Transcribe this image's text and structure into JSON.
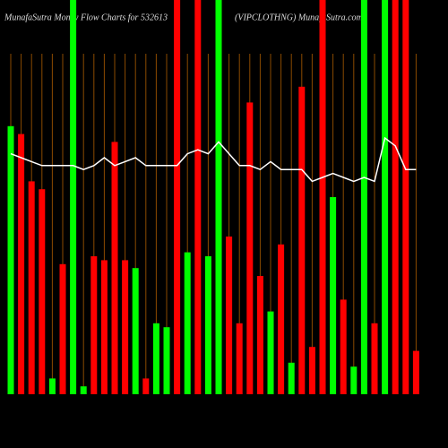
{
  "chart_data": {
    "type": "bar",
    "title": "MunafaSutra  Money Flow  Charts for 532613",
    "subtitle": "(VIPCLOTHNG) MunafaSutra.com",
    "ylim": [
      0,
      100
    ],
    "values": [
      68,
      66,
      54,
      52,
      4,
      33,
      100,
      2,
      35,
      34,
      64,
      34,
      32,
      4,
      18,
      17,
      100,
      36,
      100,
      35,
      100,
      40,
      18,
      74,
      30,
      21,
      38,
      8,
      78,
      12,
      100,
      50,
      24,
      7,
      100,
      18,
      100,
      100,
      100,
      11
    ],
    "colors": [
      "#00ff00",
      "#ff0000",
      "#ff0000",
      "#ff0000",
      "#00ff00",
      "#ff0000",
      "#00ff00",
      "#00ff00",
      "#ff0000",
      "#ff0000",
      "#ff0000",
      "#ff0000",
      "#00ff00",
      "#ff0000",
      "#00ff00",
      "#00ff00",
      "#ff0000",
      "#00ff00",
      "#ff0000",
      "#00ff00",
      "#00ff00",
      "#ff0000",
      "#ff0000",
      "#ff0000",
      "#ff0000",
      "#00ff00",
      "#ff0000",
      "#00ff00",
      "#ff0000",
      "#ff0000",
      "#ff0000",
      "#00ff00",
      "#ff0000",
      "#00ff00",
      "#00ff00",
      "#ff0000",
      "#00ff00",
      "#ff0000",
      "#ff0000",
      "#ff0000"
    ],
    "line": {
      "color": "#ffffff",
      "values": [
        61,
        60,
        59,
        58,
        58,
        58,
        58,
        57,
        58,
        60,
        58,
        59,
        60,
        58,
        58,
        58,
        58,
        61,
        62,
        61,
        64,
        61,
        58,
        58,
        57,
        59,
        57,
        57,
        57,
        54,
        55,
        56,
        55,
        54,
        55,
        54,
        65,
        63,
        57,
        57
      ]
    }
  }
}
